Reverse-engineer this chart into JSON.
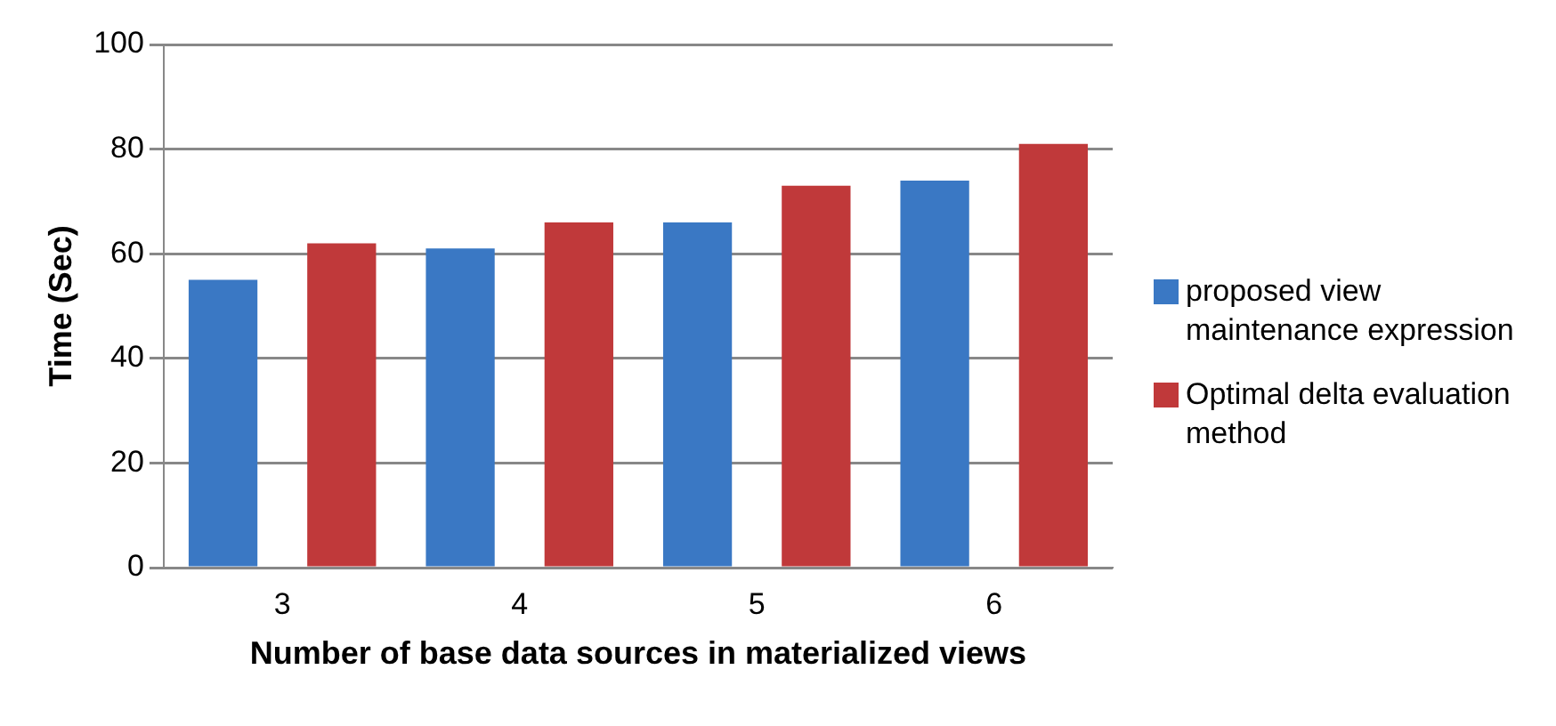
{
  "chart_data": {
    "type": "bar",
    "xlabel": "Number of base data sources in materialized views",
    "ylabel": "Time (Sec)",
    "categories": [
      "3",
      "4",
      "5",
      "6"
    ],
    "series": [
      {
        "name": "proposed view maintenance expression",
        "color": "#3a78c4",
        "values": [
          55,
          61,
          66,
          74
        ]
      },
      {
        "name": "Optimal delta evaluation method",
        "color": "#c0393a",
        "values": [
          62,
          66,
          73,
          81
        ]
      }
    ],
    "ylim": [
      0,
      100
    ],
    "yticks": [
      0,
      20,
      40,
      60,
      80,
      100
    ],
    "grid": "y",
    "legend": "right"
  }
}
